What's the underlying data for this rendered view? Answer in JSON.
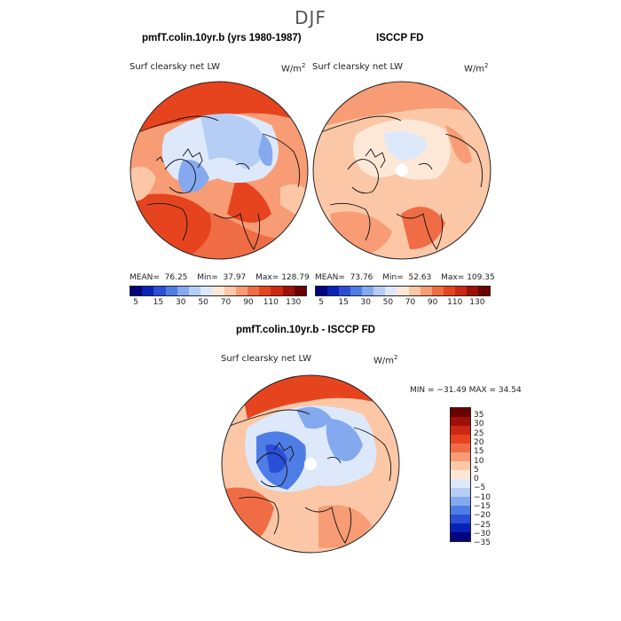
{
  "main_title": "DJF",
  "panels": {
    "left": {
      "title": "pmfT.colin.10yr.b (yrs 1980-1987)",
      "variable": "Surf clearsky net LW",
      "units": "W/m",
      "units_exp": "2",
      "mean_label": "MEAN=",
      "mean": "76.25",
      "min_label": "Min=",
      "min": "37.97",
      "max_label": "Max=",
      "max": "128.79"
    },
    "right": {
      "title": "ISCCP FD",
      "variable": "Surf clearsky net LW",
      "units": "W/m",
      "units_exp": "2",
      "mean_label": "MEAN=",
      "mean": "73.76",
      "min_label": "Min=",
      "min": "52.63",
      "max_label": "Max=",
      "max": "109.35"
    },
    "diff": {
      "title": "pmfT.colin.10yr.b - ISCCP FD",
      "variable": "Surf clearsky net LW",
      "units": "W/m",
      "units_exp": "2",
      "minmax": "MIN = −31.49 MAX =  34.54"
    }
  },
  "abs_colorbar": {
    "colors": [
      "#04047e",
      "#0a21b5",
      "#2a4fd6",
      "#4f7de6",
      "#84a9ef",
      "#b6ceF6",
      "#dde9fb",
      "#fde8d8",
      "#fbc7a6",
      "#f79c74",
      "#f06c45",
      "#e6441f",
      "#cb2712",
      "#9e1008",
      "#6b0202"
    ],
    "tick_labels": [
      "5",
      "15",
      "30",
      "50",
      "70",
      "90",
      "110",
      "130"
    ]
  },
  "diff_colorbar": {
    "colors": [
      "#6b0202",
      "#9e1008",
      "#cb2712",
      "#e6441f",
      "#f06c45",
      "#f79c74",
      "#fbc7a6",
      "#fde8d8",
      "#dde9fb",
      "#b6cef6",
      "#84a9ef",
      "#4f7de6",
      "#2a4fd6",
      "#0a21b5",
      "#04047e"
    ],
    "tick_labels": [
      "35",
      "30",
      "25",
      "20",
      "15",
      "10",
      "5",
      "0",
      "−5",
      "−10",
      "−15",
      "−20",
      "−25",
      "−30",
      "−35"
    ]
  }
}
